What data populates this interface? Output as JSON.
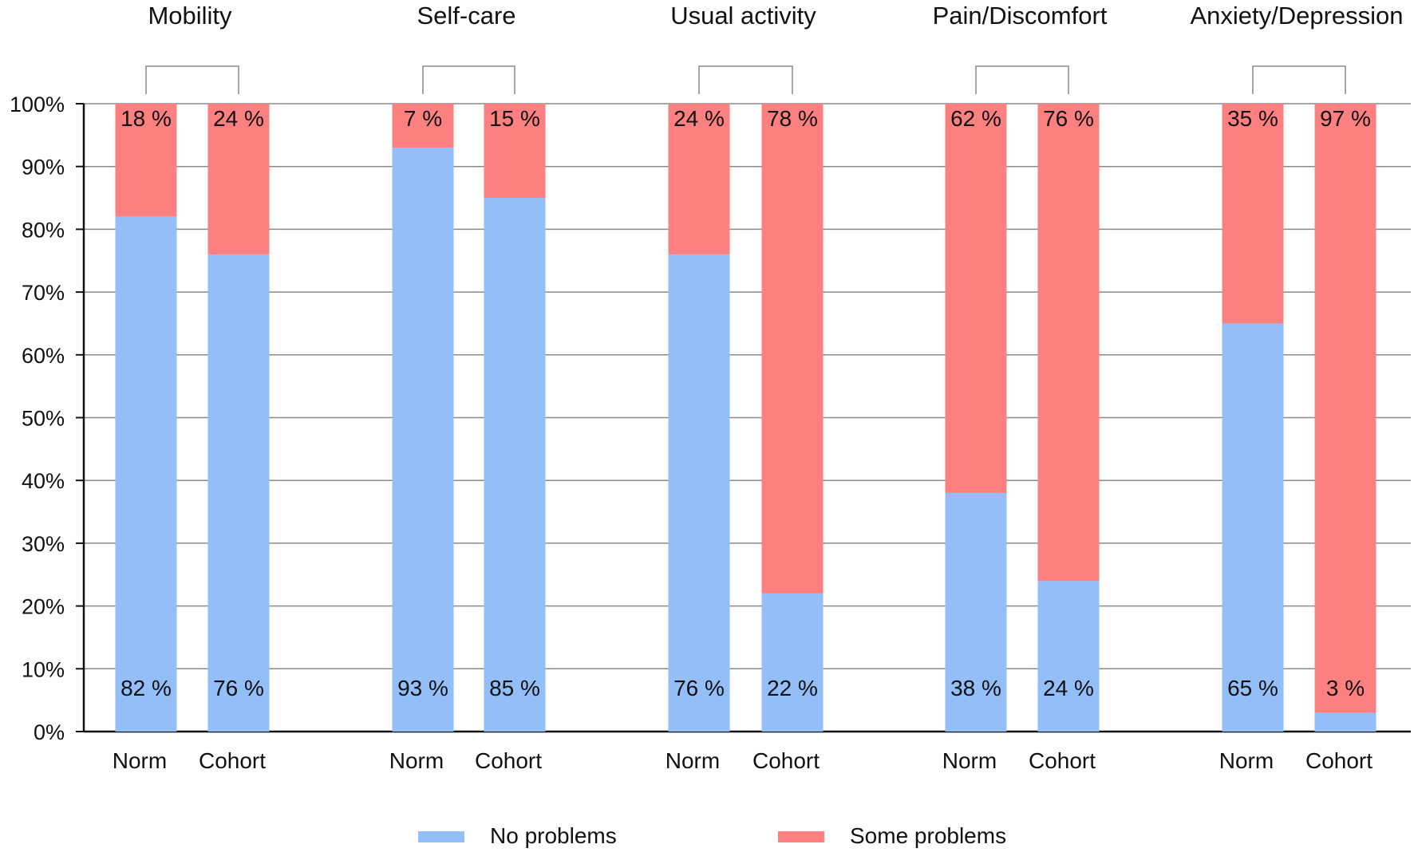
{
  "chart_data": {
    "type": "bar",
    "stacked": true,
    "groups": [
      {
        "title": "Mobility",
        "bars": [
          {
            "label": "Norm",
            "no_problems": 82,
            "some_problems": 18
          },
          {
            "label": "Cohort",
            "no_problems": 76,
            "some_problems": 24
          }
        ]
      },
      {
        "title": "Self-care",
        "bars": [
          {
            "label": "Norm",
            "no_problems": 93,
            "some_problems": 7
          },
          {
            "label": "Cohort",
            "no_problems": 85,
            "some_problems": 15
          }
        ]
      },
      {
        "title": "Usual activity",
        "bars": [
          {
            "label": "Norm",
            "no_problems": 76,
            "some_problems": 24
          },
          {
            "label": "Cohort",
            "no_problems": 22,
            "some_problems": 78
          }
        ]
      },
      {
        "title": "Pain/Discomfort",
        "bars": [
          {
            "label": "Norm",
            "no_problems": 38,
            "some_problems": 62
          },
          {
            "label": "Cohort",
            "no_problems": 24,
            "some_problems": 76
          }
        ]
      },
      {
        "title": "Anxiety/Depression",
        "bars": [
          {
            "label": "Norm",
            "no_problems": 65,
            "some_problems": 35
          },
          {
            "label": "Cohort",
            "no_problems": 3,
            "some_problems": 97
          }
        ]
      }
    ],
    "series": [
      {
        "key": "no_problems",
        "name": "No problems",
        "color": "#93BEF8"
      },
      {
        "key": "some_problems",
        "name": "Some problems",
        "color": "#FC8080"
      }
    ],
    "yticks": [
      "0%",
      "10%",
      "20%",
      "30%",
      "40%",
      "50%",
      "60%",
      "70%",
      "80%",
      "90%",
      "100%"
    ],
    "ylim": [
      0,
      100
    ],
    "value_suffix": " %",
    "grid": true,
    "legend": "bottom-center"
  }
}
